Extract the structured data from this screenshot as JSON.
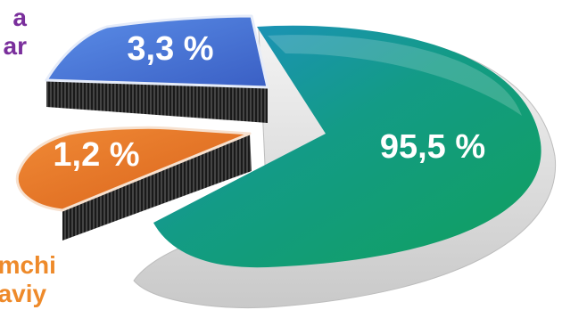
{
  "chart_data": {
    "type": "pie",
    "style": "3d-exploded",
    "slices": [
      {
        "label": "95,5 %",
        "value": 95.5,
        "color": "#12a06e",
        "label_color": "#ffffff"
      },
      {
        "label": "3,3 %",
        "value": 3.3,
        "color": "#4a78d8",
        "label_color": "#ffffff"
      },
      {
        "label": "1,2 %",
        "value": 1.2,
        "color": "#e8731e",
        "label_color": "#ffffff"
      }
    ],
    "legend_fragments": [
      {
        "lines": [
          "a",
          "ar"
        ],
        "color": "#7a2f9c"
      },
      {
        "lines": [
          "amchi",
          "vaviy"
        ],
        "color": "#ee8a2a"
      }
    ]
  }
}
